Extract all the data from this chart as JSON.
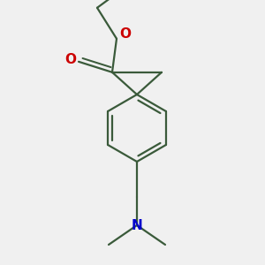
{
  "background_color": "#f0f0f0",
  "bond_color": "#3a5a3a",
  "oxygen_color": "#cc0000",
  "nitrogen_color": "#0000cc",
  "line_width": 1.6,
  "figsize": [
    3.0,
    3.0
  ],
  "dpi": 100,
  "xlim": [
    0,
    300
  ],
  "ylim": [
    0,
    300
  ]
}
